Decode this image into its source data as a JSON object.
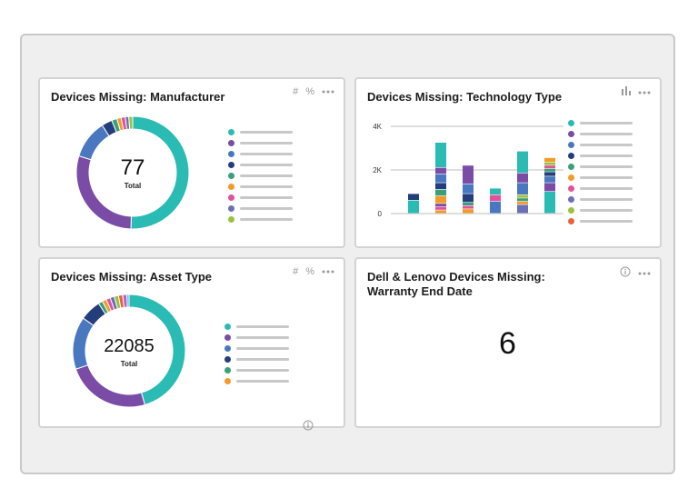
{
  "cards": {
    "manufacturer": {
      "title": "Devices Missing: Manufacturer",
      "tool_hash": "#",
      "tool_pct": "%",
      "total_value": "77",
      "total_label": "Total",
      "segments": [
        {
          "color": "#2bbbb5",
          "fraction": 0.5
        },
        {
          "color": "#7a4ca6",
          "fraction": 0.29
        },
        {
          "color": "#4a78c0",
          "fraction": 0.11
        },
        {
          "color": "#233e7b",
          "fraction": 0.03
        },
        {
          "color": "#3aa07a",
          "fraction": 0.015
        },
        {
          "color": "#f29b2a",
          "fraction": 0.012
        },
        {
          "color": "#e0529a",
          "fraction": 0.012
        },
        {
          "color": "#6a70b8",
          "fraction": 0.01
        },
        {
          "color": "#9ac23c",
          "fraction": 0.011
        }
      ],
      "legend_colors": [
        "#2bbbb5",
        "#7a4ca6",
        "#4a78c0",
        "#233e7b",
        "#3aa07a",
        "#f29b2a",
        "#e0529a",
        "#6a70b8",
        "#9ac23c"
      ]
    },
    "technology": {
      "title": "Devices Missing: Technology Type",
      "legend_colors": [
        "#2bbbb5",
        "#7a4ca6",
        "#4a78c0",
        "#233e7b",
        "#3aa07a",
        "#f29b2a",
        "#e0529a",
        "#6a70b8",
        "#9ac23c",
        "#e8633a"
      ]
    },
    "asset": {
      "title": "Devices Missing: Asset Type",
      "tool_hash": "#",
      "tool_pct": "%",
      "total_value": "22085",
      "total_label": "Total",
      "segments": [
        {
          "color": "#2bbbb5",
          "fraction": 0.45
        },
        {
          "color": "#7a4ca6",
          "fraction": 0.24
        },
        {
          "color": "#4a78c0",
          "fraction": 0.15
        },
        {
          "color": "#233e7b",
          "fraction": 0.06
        },
        {
          "color": "#3aa07a",
          "fraction": 0.012
        },
        {
          "color": "#f29b2a",
          "fraction": 0.012
        },
        {
          "color": "#e0529a",
          "fraction": 0.012
        },
        {
          "color": "#6a70b8",
          "fraction": 0.012
        },
        {
          "color": "#9ac23c",
          "fraction": 0.012
        },
        {
          "color": "#e8633a",
          "fraction": 0.012
        },
        {
          "color": "#a86ac9",
          "fraction": 0.012
        },
        {
          "color": "#5aa0d8",
          "fraction": 0.006
        }
      ],
      "legend_colors": [
        "#2bbbb5",
        "#7a4ca6",
        "#4a78c0",
        "#233e7b",
        "#3aa07a",
        "#f29b2a"
      ]
    },
    "warranty": {
      "title_line1": "Dell & Lenovo Devices Missing:",
      "title_line2": "Warranty End Date",
      "value": "6"
    }
  },
  "chart_data": {
    "type": "bar",
    "stacked": true,
    "yticks": [
      "4K",
      "2K",
      "0"
    ],
    "ylim": [
      0,
      4000
    ],
    "grid": true,
    "bars": [
      {
        "segments": [
          {
            "color": "#2bbbb5",
            "value": 600
          },
          {
            "color": "#233e7b",
            "value": 300
          }
        ]
      },
      {
        "segments": [
          {
            "color": "#f29b2a",
            "value": 150
          },
          {
            "color": "#e0529a",
            "value": 150
          },
          {
            "color": "#7a4ca6",
            "value": 150
          },
          {
            "color": "#f29b2a",
            "value": 350
          },
          {
            "color": "#3aa07a",
            "value": 300
          },
          {
            "color": "#233e7b",
            "value": 300
          },
          {
            "color": "#4a78c0",
            "value": 400
          },
          {
            "color": "#7a4ca6",
            "value": 300
          },
          {
            "color": "#2bbbb5",
            "value": 1150
          }
        ]
      },
      {
        "segments": [
          {
            "color": "#f29b2a",
            "value": 200
          },
          {
            "color": "#e0529a",
            "value": 150
          },
          {
            "color": "#3aa07a",
            "value": 150
          },
          {
            "color": "#233e7b",
            "value": 400
          },
          {
            "color": "#4a78c0",
            "value": 450
          },
          {
            "color": "#7a4ca6",
            "value": 850
          }
        ]
      },
      {
        "segments": [
          {
            "color": "#4a78c0",
            "value": 550
          },
          {
            "color": "#e0529a",
            "value": 300
          },
          {
            "color": "#2bbbb5",
            "value": 300
          }
        ]
      },
      {
        "segments": [
          {
            "color": "#6a70b8",
            "value": 400
          },
          {
            "color": "#f29b2a",
            "value": 150
          },
          {
            "color": "#3aa07a",
            "value": 150
          },
          {
            "color": "#9ac23c",
            "value": 150
          },
          {
            "color": "#4a78c0",
            "value": 550
          },
          {
            "color": "#7a4ca6",
            "value": 450
          },
          {
            "color": "#2bbbb5",
            "value": 1000
          }
        ]
      },
      {
        "segments": [
          {
            "color": "#2bbbb5",
            "value": 1000
          },
          {
            "color": "#7a4ca6",
            "value": 400
          },
          {
            "color": "#4a78c0",
            "value": 300
          },
          {
            "color": "#233e7b",
            "value": 200
          },
          {
            "color": "#3aa07a",
            "value": 150
          },
          {
            "color": "#e0529a",
            "value": 150
          },
          {
            "color": "#9ac23c",
            "value": 150
          },
          {
            "color": "#f29b2a",
            "value": 200
          }
        ]
      }
    ]
  }
}
